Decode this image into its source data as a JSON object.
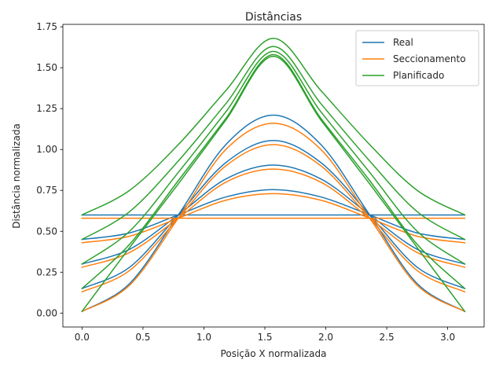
{
  "chart_data": {
    "type": "line",
    "title": "Distâncias",
    "xlabel": "Posição X normalizada",
    "ylabel": "Distância normalizada",
    "xlim": [
      -0.157,
      3.299
    ],
    "ylim": [
      -0.085,
      1.765
    ],
    "xticks": [
      0.0,
      0.5,
      1.0,
      1.5,
      2.0,
      2.5,
      3.0
    ],
    "xtick_labels": [
      "0.0",
      "0.5",
      "1.0",
      "1.5",
      "2.0",
      "2.5",
      "3.0"
    ],
    "yticks": [
      0.0,
      0.25,
      0.5,
      0.75,
      1.0,
      1.25,
      1.5,
      1.75
    ],
    "ytick_labels": [
      "0.00",
      "0.25",
      "0.50",
      "0.75",
      "1.00",
      "1.25",
      "1.50",
      "1.75"
    ],
    "grid": false,
    "legend_position": "top-right",
    "legend": [
      {
        "label": "Real",
        "color": "#1f77b4"
      },
      {
        "label": "Seccionamento",
        "color": "#ff7f0e"
      },
      {
        "label": "Planificado",
        "color": "#2ca02c"
      }
    ],
    "series": [
      {
        "group": "Real",
        "color": "#1f77b4",
        "x": [
          0.0,
          0.39,
          0.79,
          1.18,
          1.57,
          1.96,
          2.36,
          2.75,
          3.14
        ],
        "y": [
          0.6,
          0.6,
          0.6,
          0.6,
          0.6,
          0.6,
          0.6,
          0.6,
          0.6
        ]
      },
      {
        "group": "Real",
        "color": "#1f77b4",
        "x": [
          0.0,
          0.39,
          0.79,
          1.18,
          1.57,
          1.96,
          2.36,
          2.75,
          3.14
        ],
        "y": [
          0.45,
          0.49,
          0.6,
          0.71,
          0.755,
          0.71,
          0.6,
          0.49,
          0.45
        ]
      },
      {
        "group": "Real",
        "color": "#1f77b4",
        "x": [
          0.0,
          0.39,
          0.79,
          1.18,
          1.57,
          1.96,
          2.36,
          2.75,
          3.14
        ],
        "y": [
          0.3,
          0.39,
          0.6,
          0.82,
          0.905,
          0.82,
          0.6,
          0.39,
          0.3
        ]
      },
      {
        "group": "Real",
        "color": "#1f77b4",
        "x": [
          0.0,
          0.39,
          0.79,
          1.18,
          1.57,
          1.96,
          2.36,
          2.75,
          3.14
        ],
        "y": [
          0.15,
          0.28,
          0.6,
          0.92,
          1.055,
          0.92,
          0.6,
          0.28,
          0.15
        ]
      },
      {
        "group": "Real",
        "color": "#1f77b4",
        "x": [
          0.0,
          0.39,
          0.79,
          1.18,
          1.57,
          1.96,
          2.36,
          2.75,
          3.14
        ],
        "y": [
          0.01,
          0.18,
          0.6,
          1.03,
          1.21,
          1.03,
          0.6,
          0.18,
          0.01
        ]
      },
      {
        "group": "Seccionamento",
        "color": "#ff7f0e",
        "x": [
          0.0,
          0.39,
          0.79,
          1.18,
          1.57,
          1.96,
          2.36,
          2.75,
          3.14
        ],
        "y": [
          0.58,
          0.58,
          0.58,
          0.58,
          0.58,
          0.58,
          0.58,
          0.58,
          0.58
        ]
      },
      {
        "group": "Seccionamento",
        "color": "#ff7f0e",
        "x": [
          0.0,
          0.39,
          0.79,
          1.18,
          1.57,
          1.96,
          2.36,
          2.75,
          3.14
        ],
        "y": [
          0.43,
          0.47,
          0.58,
          0.69,
          0.73,
          0.69,
          0.58,
          0.47,
          0.43
        ]
      },
      {
        "group": "Seccionamento",
        "color": "#ff7f0e",
        "x": [
          0.0,
          0.39,
          0.79,
          1.18,
          1.57,
          1.96,
          2.36,
          2.75,
          3.14
        ],
        "y": [
          0.28,
          0.37,
          0.58,
          0.8,
          0.88,
          0.8,
          0.58,
          0.37,
          0.28
        ]
      },
      {
        "group": "Seccionamento",
        "color": "#ff7f0e",
        "x": [
          0.0,
          0.39,
          0.79,
          1.18,
          1.57,
          1.96,
          2.36,
          2.75,
          3.14
        ],
        "y": [
          0.13,
          0.26,
          0.58,
          0.9,
          1.03,
          0.9,
          0.58,
          0.26,
          0.13
        ]
      },
      {
        "group": "Seccionamento",
        "color": "#ff7f0e",
        "x": [
          0.0,
          0.39,
          0.79,
          1.18,
          1.57,
          1.96,
          2.36,
          2.75,
          3.14
        ],
        "y": [
          0.01,
          0.17,
          0.58,
          1.0,
          1.16,
          1.0,
          0.58,
          0.17,
          0.01
        ]
      },
      {
        "group": "Planificado",
        "color": "#2ca02c",
        "x": [
          0.0,
          0.39,
          0.79,
          1.18,
          1.57,
          1.96,
          2.36,
          2.75,
          3.14
        ],
        "y": [
          0.6,
          0.75,
          1.03,
          1.36,
          1.68,
          1.36,
          1.03,
          0.75,
          0.6
        ]
      },
      {
        "group": "Planificado",
        "color": "#2ca02c",
        "x": [
          0.0,
          0.39,
          0.79,
          1.18,
          1.57,
          1.96,
          2.36,
          2.75,
          3.14
        ],
        "y": [
          0.45,
          0.62,
          0.93,
          1.28,
          1.63,
          1.28,
          0.93,
          0.62,
          0.45
        ]
      },
      {
        "group": "Planificado",
        "color": "#2ca02c",
        "x": [
          0.0,
          0.39,
          0.79,
          1.18,
          1.57,
          1.96,
          2.36,
          2.75,
          3.14
        ],
        "y": [
          0.3,
          0.5,
          0.86,
          1.23,
          1.6,
          1.23,
          0.86,
          0.5,
          0.3
        ]
      },
      {
        "group": "Planificado",
        "color": "#2ca02c",
        "x": [
          0.0,
          0.39,
          0.79,
          1.18,
          1.57,
          1.96,
          2.36,
          2.75,
          3.14
        ],
        "y": [
          0.15,
          0.42,
          0.81,
          1.19,
          1.58,
          1.19,
          0.81,
          0.42,
          0.15
        ]
      },
      {
        "group": "Planificado",
        "color": "#2ca02c",
        "x": [
          0.0,
          0.39,
          0.79,
          1.18,
          1.57,
          1.96,
          2.36,
          2.75,
          3.14
        ],
        "y": [
          0.01,
          0.4,
          0.79,
          1.18,
          1.57,
          1.18,
          0.79,
          0.4,
          0.01
        ]
      }
    ]
  }
}
